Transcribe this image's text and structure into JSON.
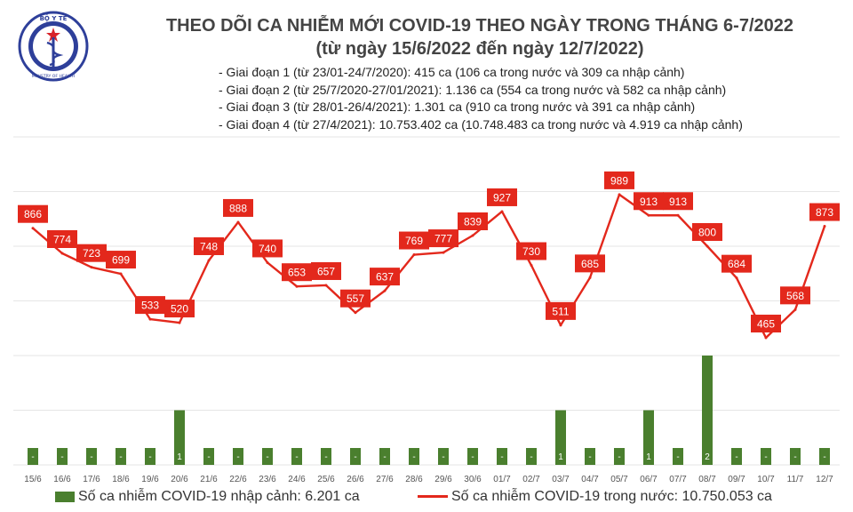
{
  "header": {
    "logo_text_top": "BỘ Y TẾ",
    "logo_text_bottom": "MINISTRY OF HEALTH",
    "title_line1": "THEO DÕI CA NHIỄM MỚI COVID-19 THEO NGÀY TRONG THÁNG 6-7/2022",
    "title_line2": "(từ ngày 15/6/2022 đến ngày 12/7/2022)",
    "notes": [
      "- Giai đoạn 1 (từ 23/01-24/7/2020): 415 ca (106 ca trong nước và 309 ca nhập cảnh)",
      "- Giai đoạn 2 (từ 25/7/2020-27/01/2021): 1.136 ca (554 ca trong nước và 582 ca nhập cảnh)",
      "- Giai đoạn 3 (từ 28/01-26/4/2021): 1.301 ca (910 ca trong nước và 391 ca nhập cảnh)",
      "- Giai đoạn 4 (từ 27/4/2021): 10.753.402 ca (10.748.483 ca trong nước và 4.919 ca nhập cảnh)"
    ]
  },
  "legend": {
    "bars_label": "Số ca nhiễm COVID-19 nhập cảnh: 6.201 ca",
    "line_label": "Số ca nhiễm COVID-19 trong nước: 10.750.053 ca"
  },
  "chart_data": {
    "type": "bar+line",
    "categories": [
      "15/6",
      "16/6",
      "17/6",
      "18/6",
      "19/6",
      "20/6",
      "21/6",
      "22/6",
      "23/6",
      "24/6",
      "25/6",
      "26/6",
      "27/6",
      "28/6",
      "29/6",
      "30/6",
      "01/7",
      "02/7",
      "03/7",
      "04/7",
      "05/7",
      "06/7",
      "07/7",
      "08/7",
      "09/7",
      "10/7",
      "11/7",
      "12/7"
    ],
    "series": [
      {
        "name": "Số ca nhiễm COVID-19 nhập cảnh",
        "type": "bar",
        "axis": "right",
        "values": [
          0,
          0,
          0,
          0,
          0,
          1,
          0,
          0,
          0,
          0,
          0,
          0,
          0,
          0,
          0,
          0,
          0,
          0,
          1,
          0,
          0,
          1,
          0,
          2,
          0,
          0,
          0,
          0
        ],
        "labels": [
          "-",
          "-",
          "-",
          "-",
          "-",
          "1",
          "-",
          "-",
          "-",
          "-",
          "-",
          "-",
          "-",
          "-",
          "-",
          "-",
          "-",
          "-",
          "1",
          "-",
          "-",
          "1",
          "-",
          "2",
          "-",
          "-",
          "-",
          "-"
        ],
        "color": "#4a7f2e"
      },
      {
        "name": "Số ca nhiễm COVID-19 trong nước",
        "type": "line",
        "axis": "left",
        "values": [
          866,
          774,
          723,
          699,
          533,
          520,
          748,
          888,
          740,
          653,
          657,
          557,
          637,
          769,
          777,
          839,
          927,
          730,
          511,
          685,
          989,
          913,
          913,
          800,
          684,
          465,
          568,
          873
        ],
        "color": "#e3281c"
      }
    ],
    "left_ylim": [
      0,
      1200
    ],
    "right_ylim": [
      0,
      6
    ],
    "grid": true,
    "legend_position": "bottom"
  }
}
